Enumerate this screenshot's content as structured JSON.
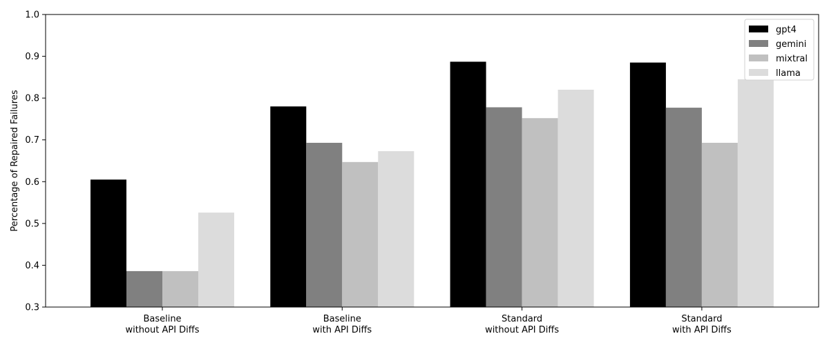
{
  "chart_data": {
    "type": "bar",
    "title": "",
    "xlabel": "",
    "ylabel": "Percentage of Repaired Failures",
    "ylim": [
      0.3,
      1.0
    ],
    "yticks": [
      "0.3",
      "0.4",
      "0.5",
      "0.6",
      "0.7",
      "0.8",
      "0.9",
      "1.0"
    ],
    "categories": [
      [
        "Baseline",
        "without API Diffs"
      ],
      [
        "Baseline",
        "with API Diffs"
      ],
      [
        "Standard",
        "without API Diffs"
      ],
      [
        "Standard",
        "with API Diffs"
      ]
    ],
    "series": [
      {
        "name": "gpt4",
        "color": "#000000",
        "values": [
          0.605,
          0.78,
          0.887,
          0.885
        ]
      },
      {
        "name": "gemini",
        "color": "#808080",
        "values": [
          0.386,
          0.693,
          0.778,
          0.777
        ]
      },
      {
        "name": "mixtral",
        "color": "#c0c0c0",
        "values": [
          0.386,
          0.647,
          0.752,
          0.693
        ]
      },
      {
        "name": "llama",
        "color": "#dcdcdc",
        "values": [
          0.526,
          0.673,
          0.82,
          0.845
        ]
      }
    ],
    "grid": false,
    "legend_position": "top-right"
  }
}
